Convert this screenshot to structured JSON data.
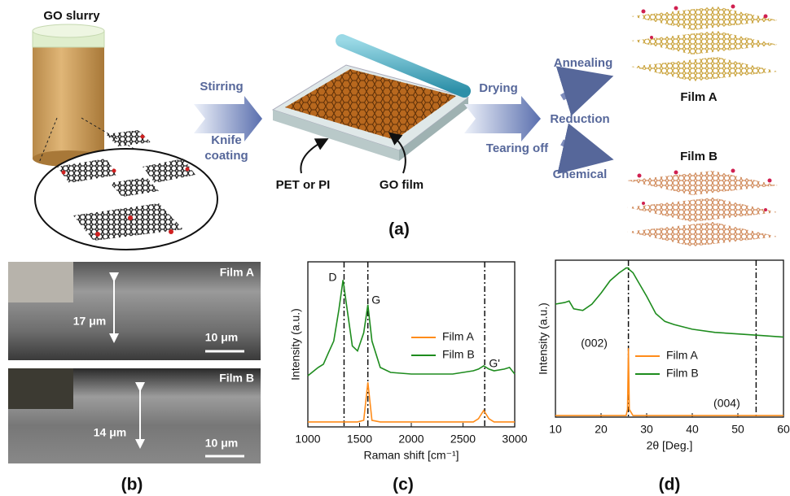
{
  "panel_a": {
    "label": "(a)",
    "slurry": "GO slurry",
    "stirring": "Stirring",
    "knife_coating": [
      "Knife",
      "coating"
    ],
    "substrate": "PET or PI",
    "go_film": "GO film",
    "drying": "Drying",
    "reduction": "Reduction",
    "tearing_off": "Tearing off",
    "annealing": "Annealing",
    "chemical": "Chemical",
    "film_a": "Film A",
    "film_b": "Film B"
  },
  "panel_b": {
    "label": "(b)",
    "film_a": "Film A",
    "thickness_a": "17 μm",
    "scale_a": "10 μm",
    "film_b": "Film B",
    "thickness_b": "14 μm",
    "scale_b": "10 μm"
  },
  "panel_c_label": "(c)",
  "panel_d_label": "(d)",
  "chart_data": [
    {
      "type": "line",
      "xlabel": "Raman shift [cm⁻¹]",
      "ylabel": "Intensity (a.u.)",
      "x": [
        1000,
        1100,
        1150,
        1200,
        1250,
        1300,
        1340,
        1380,
        1430,
        1480,
        1540,
        1580,
        1620,
        1700,
        1800,
        2000,
        2200,
        2400,
        2600,
        2650,
        2700,
        2750,
        2800,
        2900,
        2950,
        3000
      ],
      "xlim": [
        1000,
        3000
      ],
      "xticks": [
        1000,
        1500,
        2000,
        2500,
        3000
      ],
      "ylim": [
        0,
        1
      ],
      "series": [
        {
          "name": "Film A",
          "color": "#ff8c1a",
          "values": [
            0.03,
            0.03,
            0.03,
            0.03,
            0.03,
            0.03,
            0.03,
            0.03,
            0.03,
            0.03,
            0.04,
            0.27,
            0.04,
            0.03,
            0.03,
            0.03,
            0.03,
            0.03,
            0.03,
            0.05,
            0.1,
            0.05,
            0.03,
            0.03,
            0.03,
            0.03
          ]
        },
        {
          "name": "Film B",
          "color": "#1e8c1e",
          "values": [
            0.31,
            0.36,
            0.38,
            0.45,
            0.52,
            0.71,
            0.89,
            0.71,
            0.49,
            0.46,
            0.57,
            0.74,
            0.52,
            0.36,
            0.33,
            0.32,
            0.32,
            0.32,
            0.34,
            0.35,
            0.37,
            0.35,
            0.34,
            0.35,
            0.36,
            0.32
          ]
        }
      ],
      "annotations": [
        {
          "x": 1350,
          "label": "D"
        },
        {
          "x": 1580,
          "label": "G"
        },
        {
          "x": 2710,
          "label": "G'"
        }
      ]
    },
    {
      "type": "line",
      "xlabel": "2θ [Deg.]",
      "ylabel": "Intensity (a.u.)",
      "x": [
        10,
        12,
        13,
        14,
        16,
        18,
        20,
        22,
        24,
        25.5,
        25.8,
        26,
        26.2,
        27,
        28,
        30,
        32,
        34,
        36,
        40,
        45,
        50,
        55,
        60
      ],
      "xlim": [
        10,
        60
      ],
      "xticks": [
        10,
        20,
        30,
        40,
        50,
        60
      ],
      "ylim": [
        0,
        1
      ],
      "series": [
        {
          "name": "Film A",
          "color": "#ff8c1a",
          "values": [
            0.01,
            0.01,
            0.01,
            0.01,
            0.01,
            0.01,
            0.01,
            0.01,
            0.01,
            0.01,
            0.05,
            0.44,
            0.05,
            0.01,
            0.01,
            0.01,
            0.01,
            0.01,
            0.01,
            0.01,
            0.01,
            0.01,
            0.01,
            0.01
          ]
        },
        {
          "name": "Film B",
          "color": "#1e8c1e",
          "values": [
            0.72,
            0.73,
            0.74,
            0.69,
            0.68,
            0.72,
            0.79,
            0.87,
            0.92,
            0.95,
            0.95,
            0.95,
            0.94,
            0.92,
            0.87,
            0.77,
            0.66,
            0.61,
            0.59,
            0.56,
            0.54,
            0.53,
            0.52,
            0.51
          ]
        }
      ],
      "annotations": [
        {
          "x": 26,
          "label": "(002)"
        },
        {
          "x": 54,
          "label": "(004)"
        }
      ]
    }
  ]
}
